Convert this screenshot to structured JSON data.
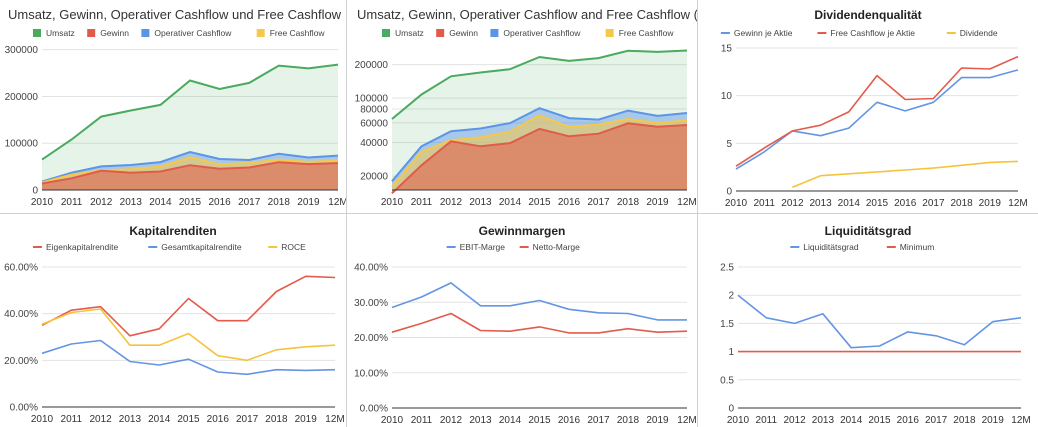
{
  "colors": {
    "umsatz": "#4aaa5e",
    "gewinn": "#e15b4b",
    "ocf": "#5b94e8",
    "fcf": "#f6c84a",
    "blue": "#6495e4",
    "red": "#e25b4c",
    "yellow": "#f5c43a",
    "grid": "#e3e3e3",
    "text": "#444444"
  },
  "chart_data": [
    {
      "type": "area",
      "title": "Umsatz, Gewinn, Operativer Cashflow und Free Cashflow",
      "title_align": "left",
      "legend": "top-left",
      "categories": [
        "2010",
        "2011",
        "2012",
        "2013",
        "2014",
        "2015",
        "2016",
        "2017",
        "2018",
        "2019",
        "12M"
      ],
      "ylim": [
        0,
        310000
      ],
      "yticks": [
        0,
        100000,
        200000,
        300000
      ],
      "ytick_labels": [
        "0",
        "100000",
        "200000",
        "300000"
      ],
      "series": [
        {
          "name": "Umsatz",
          "color_key": "umsatz",
          "values": [
            65000,
            108000,
            157000,
            170000,
            182000,
            234000,
            216000,
            229000,
            266000,
            260000,
            268000
          ]
        },
        {
          "name": "Gewinn",
          "color_key": "gewinn",
          "values": [
            14000,
            25000,
            41000,
            37000,
            39500,
            53000,
            45500,
            48000,
            59500,
            55300,
            57500
          ]
        },
        {
          "name": "Operativer Cashflow",
          "color_key": "ocf",
          "values": [
            18000,
            37000,
            50500,
            53500,
            59700,
            81300,
            66200,
            64200,
            77400,
            69400,
            73600
          ]
        },
        {
          "name": "Free Cashflow",
          "color_key": "fcf",
          "values": [
            16000,
            33000,
            42000,
            44500,
            50000,
            70000,
            55000,
            58000,
            65000,
            60000,
            63000
          ]
        }
      ]
    },
    {
      "type": "area",
      "scale": "log",
      "title": "Umsatz, Gewinn, Operativer Cashflow and Free Cashflow (log)",
      "title_align": "left",
      "legend": "top-left",
      "categories": [
        "2010",
        "2011",
        "2012",
        "2013",
        "2014",
        "2015",
        "2016",
        "2017",
        "2018",
        "2019",
        "12M"
      ],
      "ylim": [
        15000,
        300000
      ],
      "yticks": [
        20000,
        40000,
        60000,
        80000,
        100000,
        200000
      ],
      "ytick_labels": [
        "20000",
        "40000",
        "60000",
        "80000",
        "100000",
        "200000"
      ],
      "series": [
        {
          "name": "Umsatz",
          "color_key": "umsatz",
          "values": [
            65000,
            108000,
            157000,
            170000,
            182000,
            234000,
            216000,
            229000,
            266000,
            260000,
            268000
          ]
        },
        {
          "name": "Gewinn",
          "color_key": "gewinn",
          "values": [
            14000,
            25000,
            41000,
            37000,
            39500,
            53000,
            45500,
            48000,
            59500,
            55300,
            57500
          ]
        },
        {
          "name": "Operativer Cashflow",
          "color_key": "ocf",
          "values": [
            18000,
            37000,
            50500,
            53500,
            59700,
            81300,
            66200,
            64200,
            77400,
            69400,
            73600
          ]
        },
        {
          "name": "Free Cashflow",
          "color_key": "fcf",
          "values": [
            16000,
            33000,
            42000,
            44500,
            50000,
            70000,
            55000,
            58000,
            65000,
            60000,
            63000
          ]
        }
      ]
    },
    {
      "type": "line",
      "title": "Dividendenqualität",
      "title_align": "center",
      "legend": "top",
      "categories": [
        "2010",
        "2011",
        "2012",
        "2013",
        "2014",
        "2015",
        "2016",
        "2017",
        "2018",
        "2019",
        "12M"
      ],
      "ylim": [
        0,
        15
      ],
      "yticks": [
        0,
        5,
        10,
        15
      ],
      "ytick_labels": [
        "0",
        "5",
        "10",
        "15"
      ],
      "series": [
        {
          "name": "Gewinn je Aktie",
          "color_key": "blue",
          "values": [
            2.3,
            4.1,
            6.3,
            5.8,
            6.6,
            9.3,
            8.4,
            9.3,
            11.9,
            11.9,
            12.7
          ]
        },
        {
          "name": "Free Cashflow je Aktie",
          "color_key": "red",
          "values": [
            2.6,
            4.5,
            6.3,
            6.9,
            8.3,
            12.1,
            9.6,
            9.7,
            12.9,
            12.8,
            14.1
          ]
        },
        {
          "name": "Dividende",
          "color_key": "yellow",
          "values": [
            null,
            null,
            0.4,
            1.6,
            1.8,
            2.0,
            2.2,
            2.4,
            2.7,
            3.0,
            3.1
          ]
        }
      ]
    },
    {
      "type": "line",
      "title": "Kapitalrenditen",
      "title_align": "center",
      "legend": "top",
      "categories": [
        "2010",
        "2011",
        "2012",
        "2013",
        "2014",
        "2015",
        "2016",
        "2017",
        "2018",
        "2019",
        "12M"
      ],
      "ylim": [
        0,
        0.6
      ],
      "yticks": [
        0,
        0.2,
        0.4,
        0.6
      ],
      "ytick_labels": [
        "0.00%",
        "20.00%",
        "40.00%",
        "60.00%"
      ],
      "series": [
        {
          "name": "Eigenkapitalrendite",
          "color_key": "red",
          "values": [
            0.35,
            0.415,
            0.43,
            0.305,
            0.335,
            0.465,
            0.37,
            0.37,
            0.495,
            0.56,
            0.555
          ]
        },
        {
          "name": "Gesamtkapitalrendite",
          "color_key": "blue",
          "values": [
            0.23,
            0.27,
            0.285,
            0.195,
            0.18,
            0.205,
            0.15,
            0.14,
            0.16,
            0.157,
            0.16
          ]
        },
        {
          "name": "ROCE",
          "color_key": "yellow",
          "values": [
            0.355,
            0.405,
            0.42,
            0.265,
            0.265,
            0.315,
            0.22,
            0.2,
            0.245,
            0.258,
            0.265
          ]
        }
      ]
    },
    {
      "type": "line",
      "title": "Gewinnmargen",
      "title_align": "center",
      "legend": "top",
      "categories": [
        "2010",
        "2011",
        "2012",
        "2013",
        "2014",
        "2015",
        "2016",
        "2017",
        "2018",
        "2019",
        "12M"
      ],
      "ylim": [
        0,
        0.4
      ],
      "yticks": [
        0,
        0.1,
        0.2,
        0.3,
        0.4
      ],
      "ytick_labels": [
        "0.00%",
        "10.00%",
        "20.00%",
        "30.00%",
        "40.00%"
      ],
      "series": [
        {
          "name": "EBIT-Marge",
          "color_key": "blue",
          "values": [
            0.285,
            0.315,
            0.355,
            0.29,
            0.29,
            0.305,
            0.28,
            0.27,
            0.268,
            0.25,
            0.25
          ]
        },
        {
          "name": "Netto-Marge",
          "color_key": "red",
          "values": [
            0.215,
            0.24,
            0.268,
            0.22,
            0.218,
            0.23,
            0.213,
            0.213,
            0.225,
            0.215,
            0.218
          ]
        }
      ]
    },
    {
      "type": "line",
      "title": "Liquiditätsgrad",
      "title_align": "center",
      "legend": "top",
      "categories": [
        "2010",
        "2011",
        "2012",
        "2013",
        "2014",
        "2015",
        "2016",
        "2017",
        "2018",
        "2019",
        "12M"
      ],
      "ylim": [
        0,
        2.5
      ],
      "yticks": [
        0,
        0.5,
        1,
        1.5,
        2,
        2.5
      ],
      "ytick_labels": [
        "0",
        "0.5",
        "1",
        "1.5",
        "2",
        "2.5"
      ],
      "series": [
        {
          "name": "Liquiditätsgrad",
          "color_key": "blue",
          "values": [
            2.0,
            1.6,
            1.5,
            1.67,
            1.07,
            1.1,
            1.35,
            1.28,
            1.12,
            1.53,
            1.6
          ]
        },
        {
          "name": "Minimum",
          "color_key": "red",
          "values": [
            1,
            1,
            1,
            1,
            1,
            1,
            1,
            1,
            1,
            1,
            1
          ]
        }
      ]
    }
  ]
}
